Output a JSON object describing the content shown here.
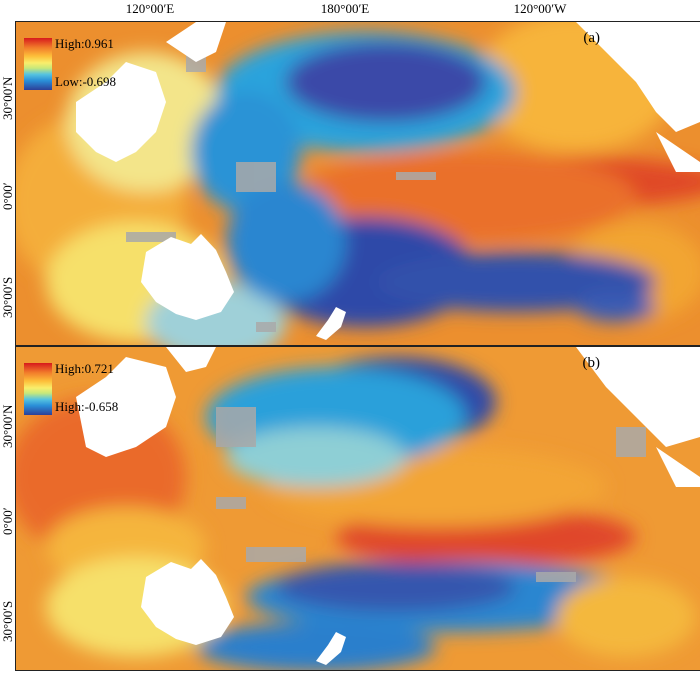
{
  "axis": {
    "top_labels": [
      "120°00′E",
      "180°00′E",
      "120°00′W"
    ],
    "left_labels_a": [
      "30°00′N",
      "0°00′",
      "30°00′S"
    ],
    "left_labels_b": [
      "30°00′N",
      "0°00′",
      "30°00′S"
    ]
  },
  "panels": [
    {
      "id": "a",
      "label": "(a)",
      "legend_high": "High:0.961",
      "legend_low": "Low:-0.698"
    },
    {
      "id": "b",
      "label": "(b)",
      "legend_high": "High:0.721",
      "legend_low": "High:-0.658"
    }
  ],
  "colors": {
    "high": "#d7191c",
    "mid_high": "#f17a2a",
    "mid": "#fdbf3a",
    "yellow": "#f9ee6c",
    "green": "#c7e87a",
    "cyan": "#55c3e0",
    "blue": "#2a8fd8",
    "low": "#2c3f98",
    "nodata": "#a8a8a8",
    "land": "#ffffff"
  }
}
